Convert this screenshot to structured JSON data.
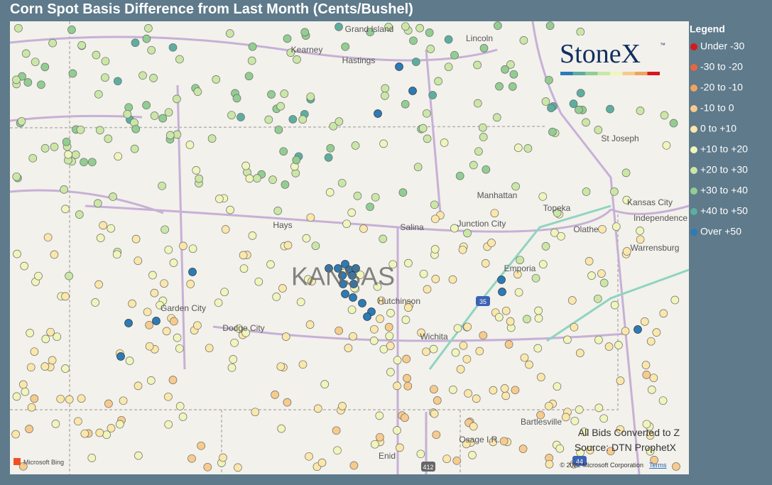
{
  "header": {
    "title": "Corn Spot Basis Difference from Last Month (Cents/Bushel)"
  },
  "legend": {
    "title": "Legend",
    "items": [
      {
        "label": "Under -30",
        "color": "#d7191c"
      },
      {
        "label": "-30 to -20",
        "color": "#e8663d"
      },
      {
        "label": "-20 to -10",
        "color": "#f1a35e"
      },
      {
        "label": "-10 to 0",
        "color": "#f7cb8c"
      },
      {
        "label": "0 to +10",
        "color": "#fbe7aa"
      },
      {
        "label": "+10 to +20",
        "color": "#f0f5bb"
      },
      {
        "label": "+20 to +30",
        "color": "#cbe7a6"
      },
      {
        "label": "+30 to +40",
        "color": "#92cd91"
      },
      {
        "label": "+40 to +50",
        "color": "#5dae9f"
      },
      {
        "label": "Over +50",
        "color": "#2c7bb6"
      }
    ]
  },
  "map": {
    "state_label": "KANSAS",
    "places": [
      "Grand Island",
      "Kearney",
      "Hastings",
      "Lincoln",
      "St Joseph",
      "Manhattan",
      "Kansas City",
      "Independence",
      "Topeka",
      "Hays",
      "Salina",
      "Junction City",
      "Olathe",
      "Warrensburg",
      "Emporia",
      "Garden City",
      "Hutchinson",
      "Dodge City",
      "Wichita",
      "Bartlesville",
      "Osage I.R.",
      "Enid"
    ],
    "roads": [
      "35",
      "44",
      "412"
    ]
  },
  "logo": {
    "name": "StoneX",
    "mark": "™"
  },
  "notes": [
    "All Bids Converted to Z",
    "Source: DTN ProphetX"
  ],
  "attribution": {
    "provider": "Microsoft Bing",
    "copyright": "© 2022 Microsoft Corporation",
    "terms": "Terms"
  }
}
